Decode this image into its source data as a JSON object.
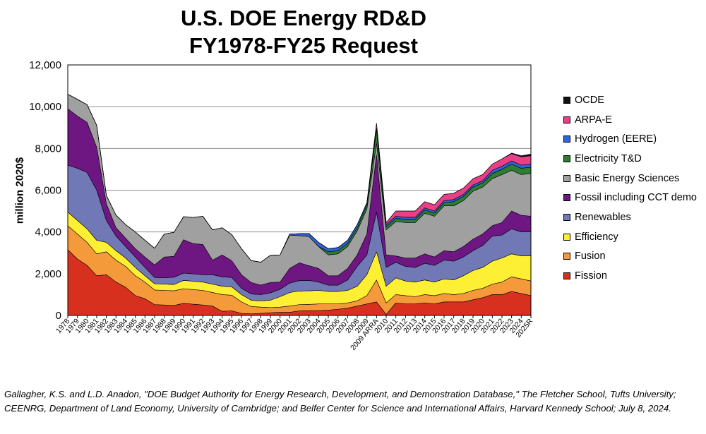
{
  "chart_data": {
    "type": "area",
    "stacked": true,
    "title": "U.S. DOE Energy RD&D",
    "subtitle": "FY1978-FY25 Request",
    "ylabel": "million 2020$",
    "xlabel": "",
    "ylim": [
      0,
      12000
    ],
    "yticks": [
      0,
      2000,
      4000,
      6000,
      8000,
      10000,
      12000
    ],
    "ytick_labels": [
      "0",
      "2,000",
      "4,000",
      "6,000",
      "8,000",
      "10,000",
      "12,000"
    ],
    "grid": true,
    "legend_position": "right",
    "categories": [
      "1978",
      "1979",
      "1980",
      "1981",
      "1982",
      "1983",
      "1984",
      "1985",
      "1986",
      "1987",
      "1988",
      "1989",
      "1990",
      "1991",
      "1992",
      "1993",
      "1994",
      "1995",
      "1996",
      "1997",
      "1998",
      "1999",
      "2000",
      "2001",
      "2002",
      "2003",
      "2004",
      "2005",
      "2006",
      "2007",
      "2008",
      "2009",
      "2009 ARRA",
      "2010",
      "2011",
      "2012",
      "2013",
      "2014",
      "2015",
      "2016",
      "2017",
      "2018",
      "2019",
      "2020",
      "2021",
      "2022",
      "2023",
      "2024",
      "2025R"
    ],
    "series": [
      {
        "name": "Fission",
        "color": "#d7301f",
        "values": [
          3150,
          2700,
          2400,
          1900,
          1950,
          1600,
          1350,
          950,
          800,
          520,
          500,
          480,
          580,
          540,
          500,
          450,
          200,
          220,
          100,
          80,
          100,
          130,
          150,
          150,
          220,
          230,
          230,
          250,
          300,
          350,
          450,
          550,
          650,
          50,
          600,
          550,
          550,
          600,
          550,
          650,
          650,
          650,
          750,
          850,
          1000,
          1000,
          1150,
          1050,
          950
        ]
      },
      {
        "name": "Fusion",
        "color": "#f59a3b",
        "values": [
          1150,
          1200,
          1100,
          1050,
          1100,
          1050,
          1000,
          950,
          800,
          700,
          700,
          700,
          700,
          700,
          700,
          650,
          800,
          750,
          550,
          350,
          300,
          250,
          250,
          300,
          300,
          300,
          320,
          300,
          250,
          250,
          250,
          400,
          1050,
          550,
          400,
          400,
          350,
          400,
          400,
          400,
          350,
          400,
          450,
          450,
          500,
          600,
          700,
          700,
          700
        ]
      },
      {
        "name": "Efficiency",
        "color": "#fdf034",
        "values": [
          650,
          650,
          650,
          650,
          450,
          450,
          400,
          400,
          300,
          300,
          300,
          300,
          400,
          400,
          400,
          400,
          400,
          400,
          350,
          300,
          300,
          350,
          500,
          650,
          650,
          650,
          650,
          600,
          600,
          600,
          700,
          1000,
          1350,
          800,
          800,
          700,
          700,
          700,
          650,
          700,
          700,
          850,
          950,
          1000,
          1100,
          1150,
          1100,
          1100,
          1200
        ]
      },
      {
        "name": "Renewables",
        "color": "#7079b5",
        "values": [
          2250,
          2500,
          2700,
          2400,
          1050,
          700,
          550,
          500,
          400,
          300,
          300,
          350,
          350,
          350,
          350,
          450,
          450,
          450,
          300,
          300,
          300,
          350,
          350,
          450,
          500,
          500,
          400,
          300,
          300,
          500,
          950,
          950,
          1900,
          900,
          750,
          700,
          700,
          800,
          800,
          900,
          900,
          900,
          950,
          1050,
          1200,
          1100,
          1200,
          1150,
          1150
        ]
      },
      {
        "name": "Fossil including CCT demo",
        "color": "#6e1782",
        "values": [
          2700,
          2500,
          2400,
          2050,
          800,
          400,
          400,
          400,
          500,
          600,
          1000,
          1000,
          1600,
          1450,
          1450,
          700,
          1050,
          800,
          650,
          550,
          450,
          500,
          350,
          700,
          850,
          700,
          650,
          450,
          450,
          550,
          550,
          1000,
          2750,
          600,
          300,
          400,
          450,
          450,
          400,
          450,
          450,
          500,
          550,
          550,
          500,
          600,
          850,
          800,
          750
        ]
      },
      {
        "name": "Basic Energy Sciences",
        "color": "#a0a0a0",
        "values": [
          700,
          800,
          850,
          1050,
          400,
          600,
          650,
          800,
          800,
          800,
          1100,
          1150,
          1100,
          1250,
          1350,
          1450,
          1300,
          1250,
          1250,
          1050,
          1100,
          1300,
          1300,
          1600,
          1300,
          1400,
          1050,
          1000,
          1050,
          1050,
          1150,
          1200,
          550,
          1200,
          1650,
          1700,
          1700,
          1950,
          1950,
          2150,
          2200,
          2200,
          2300,
          2250,
          2250,
          2300,
          1950,
          1950,
          2050
        ]
      },
      {
        "name": "Electricity T&D",
        "color": "#2e7d32",
        "values": [
          0,
          0,
          0,
          0,
          0,
          0,
          0,
          0,
          0,
          0,
          0,
          0,
          0,
          0,
          0,
          0,
          0,
          0,
          0,
          0,
          0,
          0,
          0,
          0,
          0,
          0,
          0,
          150,
          150,
          150,
          150,
          200,
          650,
          150,
          150,
          150,
          150,
          150,
          150,
          150,
          200,
          200,
          200,
          200,
          250,
          250,
          300,
          300,
          300
        ]
      },
      {
        "name": "Hydrogen (EERE)",
        "color": "#2f63d6",
        "values": [
          0,
          0,
          0,
          0,
          0,
          0,
          0,
          0,
          0,
          0,
          0,
          0,
          0,
          0,
          0,
          0,
          0,
          0,
          0,
          0,
          0,
          0,
          0,
          50,
          100,
          150,
          200,
          150,
          150,
          150,
          150,
          100,
          50,
          100,
          100,
          100,
          100,
          100,
          100,
          100,
          100,
          100,
          100,
          100,
          150,
          150,
          150,
          150,
          150
        ]
      },
      {
        "name": "ARPA-E",
        "color": "#e83f86",
        "values": [
          0,
          0,
          0,
          0,
          0,
          0,
          0,
          0,
          0,
          0,
          0,
          0,
          0,
          0,
          0,
          0,
          0,
          0,
          0,
          0,
          0,
          0,
          0,
          0,
          0,
          0,
          0,
          0,
          0,
          0,
          0,
          0,
          250,
          100,
          250,
          300,
          300,
          300,
          300,
          300,
          300,
          300,
          300,
          300,
          300,
          350,
          350,
          400,
          400
        ]
      },
      {
        "name": "OCDE",
        "color": "#111111",
        "values": [
          0,
          0,
          0,
          0,
          0,
          0,
          0,
          0,
          0,
          0,
          0,
          0,
          0,
          0,
          0,
          0,
          0,
          0,
          0,
          0,
          0,
          0,
          0,
          0,
          0,
          0,
          0,
          0,
          0,
          0,
          0,
          0,
          0,
          0,
          0,
          0,
          0,
          0,
          0,
          0,
          0,
          0,
          0,
          0,
          0,
          0,
          30,
          50,
          80
        ]
      }
    ]
  },
  "source_note": "Gallagher, K.S. and L.D. Anadon, \"DOE Budget Authority for Energy Research, Development, and Demonstration Database,\" The Fletcher School, Tufts University; CEENRG, Department of Land Economy, University of Cambridge; and Belfer Center for Science and International Affairs, Harvard Kennedy School; July 8, 2024."
}
